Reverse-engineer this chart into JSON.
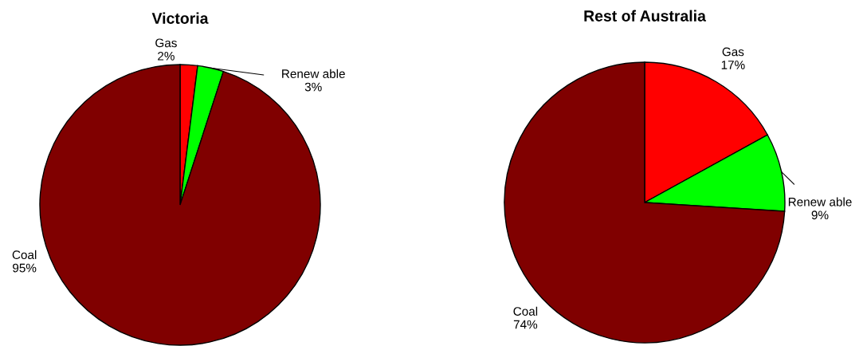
{
  "chart_data": [
    {
      "type": "pie",
      "title": "Victoria",
      "categories": [
        "Gas",
        "Renew able",
        "Coal"
      ],
      "values": [
        2,
        3,
        95
      ],
      "colors": [
        "#ff0000",
        "#00ff00",
        "#800000"
      ],
      "value_labels": [
        "2%",
        "3%",
        "95%"
      ]
    },
    {
      "type": "pie",
      "title": "Rest of Australia",
      "categories": [
        "Gas",
        "Renew able",
        "Coal"
      ],
      "values": [
        17,
        9,
        74
      ],
      "colors": [
        "#ff0000",
        "#00ff00",
        "#800000"
      ],
      "value_labels": [
        "17%",
        "9%",
        "74%"
      ]
    }
  ]
}
